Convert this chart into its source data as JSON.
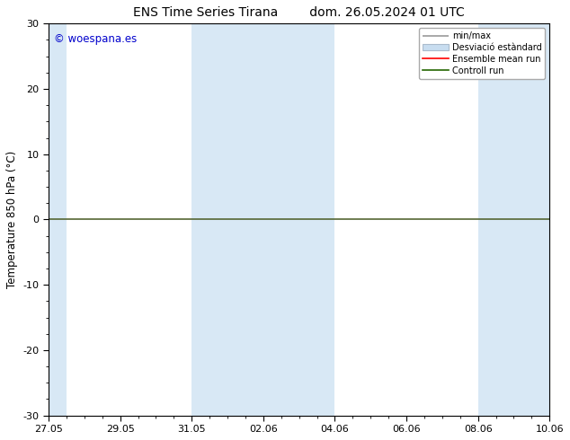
{
  "title": "ENS Time Series Tirana        dom. 26.05.2024 01 UTC",
  "ylabel": "Temperature 850 hPa (°C)",
  "ylim": [
    -30,
    30
  ],
  "yticks": [
    -30,
    -20,
    -10,
    0,
    10,
    20,
    30
  ],
  "xtick_labels": [
    "27.05",
    "29.05",
    "31.05",
    "02.06",
    "04.06",
    "06.06",
    "08.06",
    "10.06"
  ],
  "copyright": "© woespana.es",
  "legend_entries": [
    "min/max",
    "Desviació estàndard",
    "Ensemble mean run",
    "Controll run"
  ],
  "band_color": "#d8e8f5",
  "background_color": "#ffffff",
  "plot_bg_color": "#ffffff",
  "zero_line_color": "#556633",
  "title_fontsize": 10,
  "axis_fontsize": 8.5,
  "tick_fontsize": 8,
  "copyright_color": "#0000cc",
  "shaded_segments": [
    0,
    3,
    6
  ],
  "x_min": 0,
  "x_max": 14
}
